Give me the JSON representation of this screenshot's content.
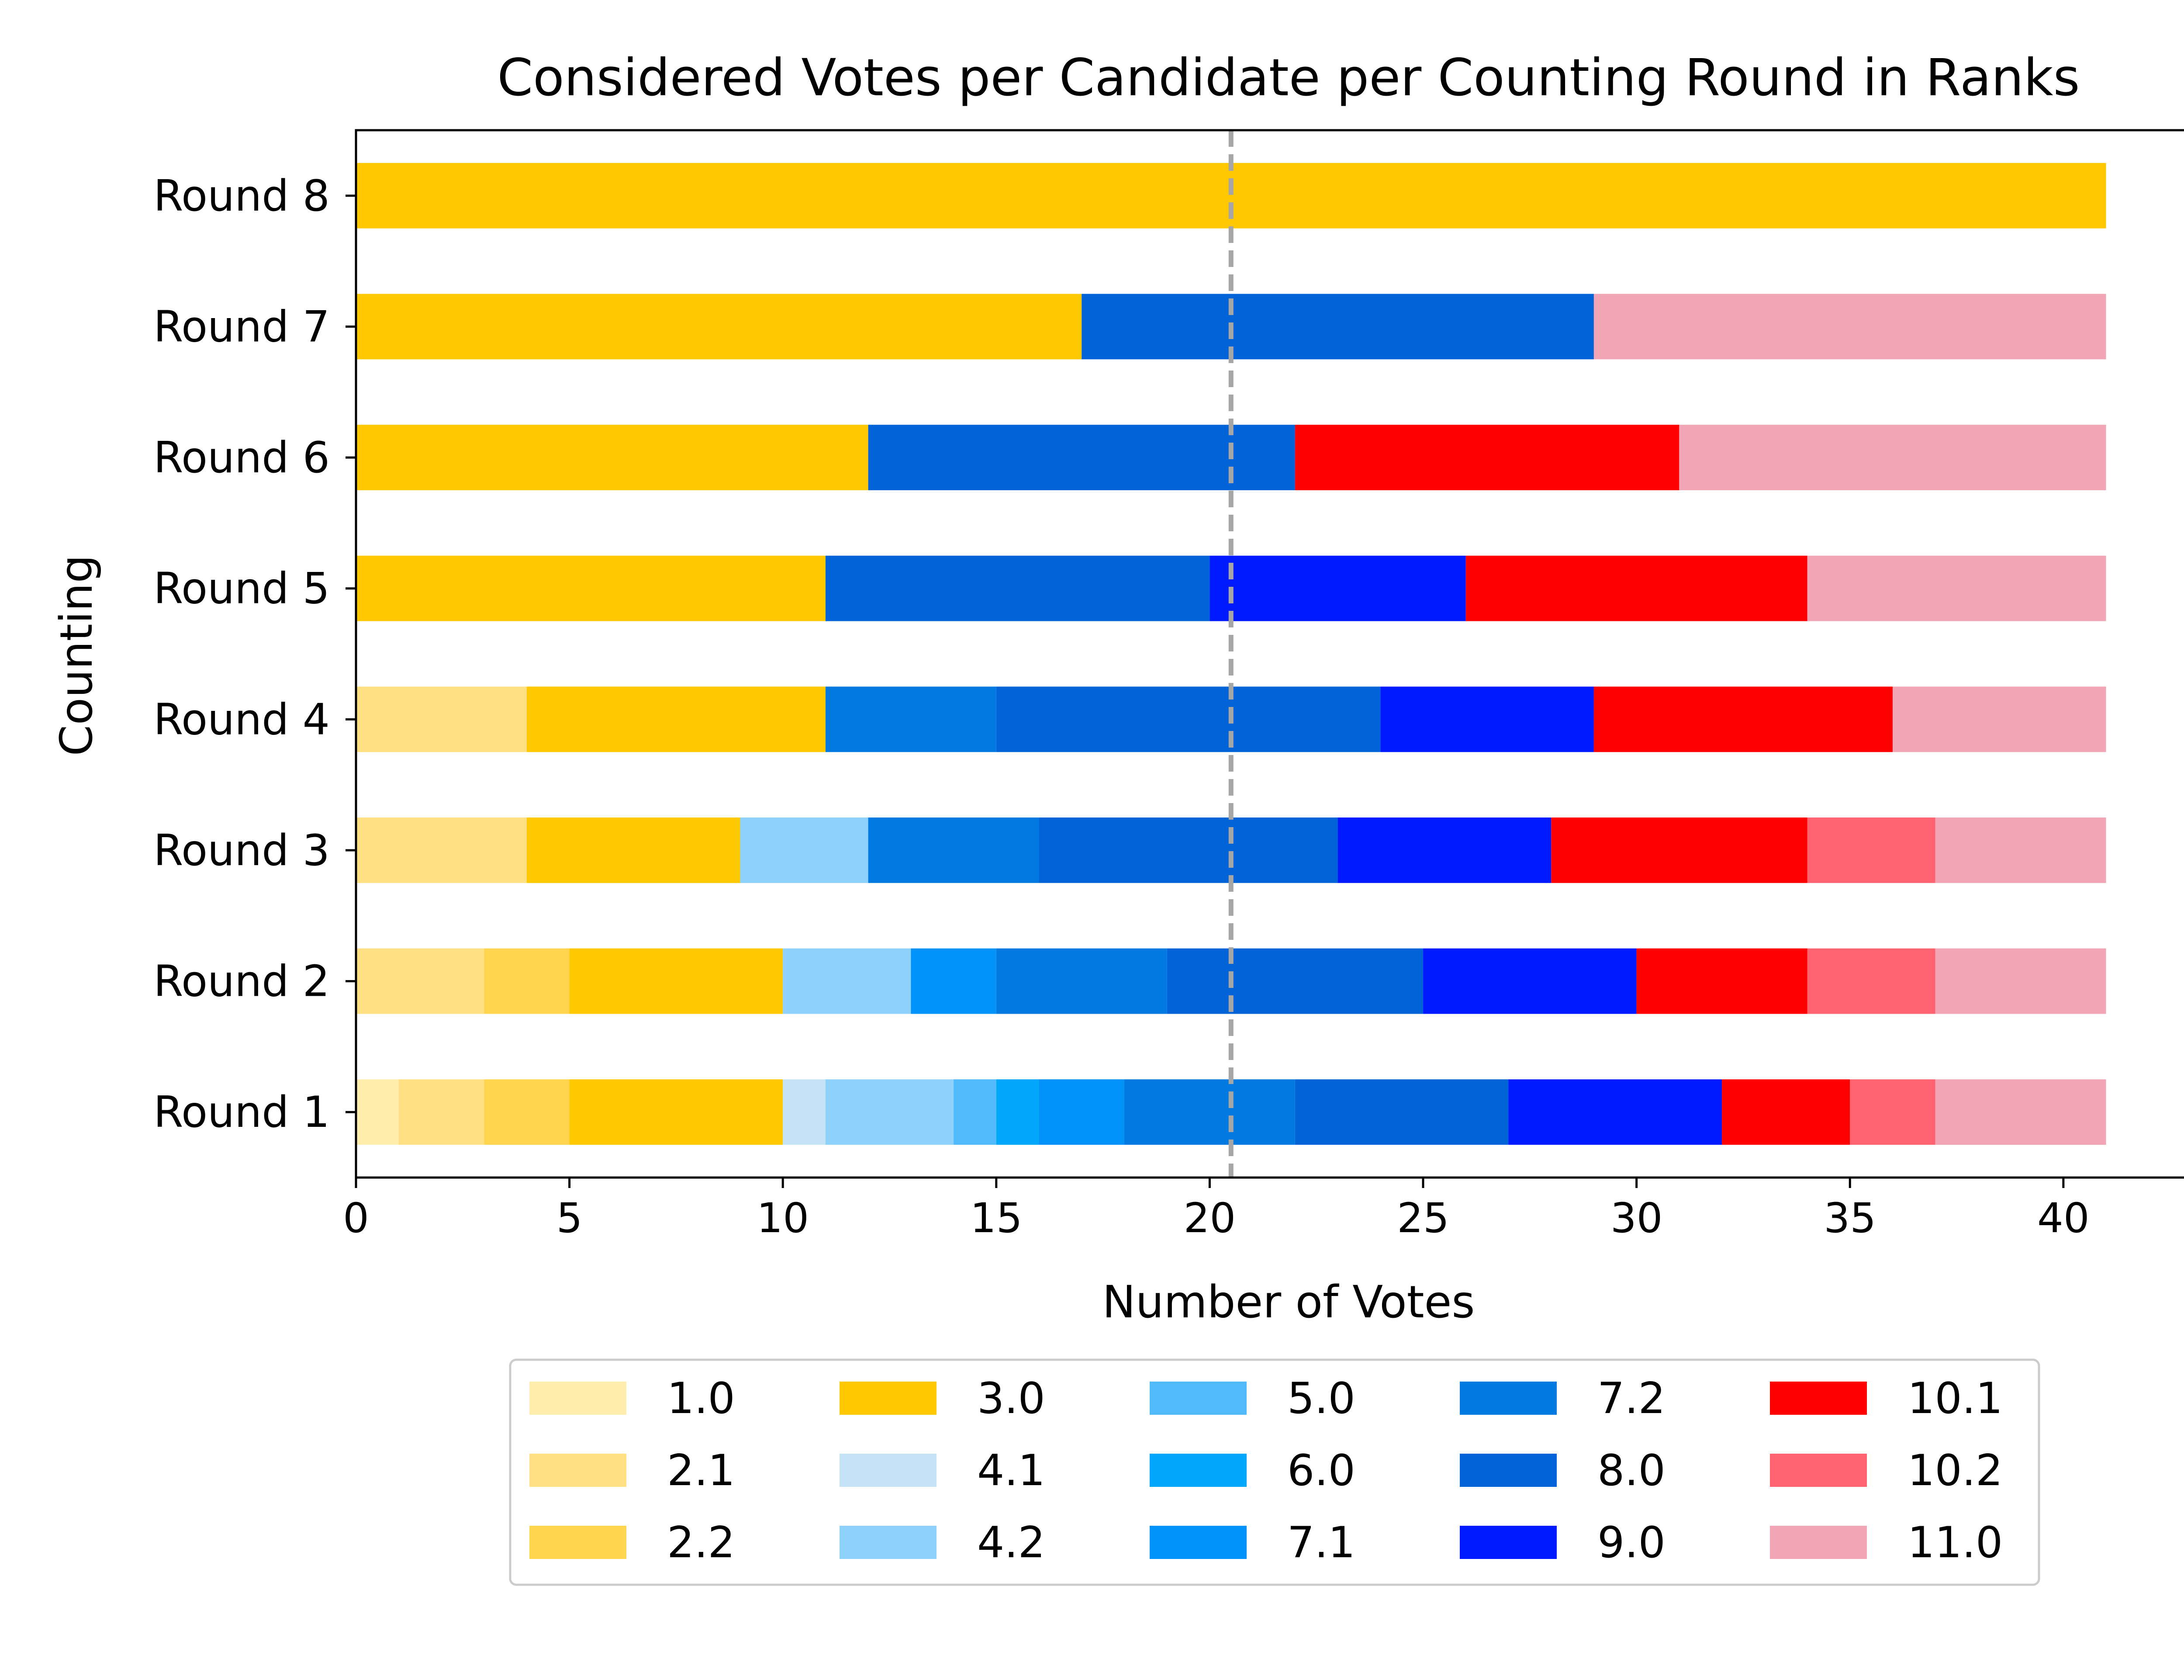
{
  "chart_data": {
    "type": "bar",
    "orientation": "horizontal",
    "stacked": true,
    "title": "Considered Votes per Candidate per Counting Round in Ranks",
    "xlabel": "Number of Votes",
    "ylabel": "Counting",
    "xlim": [
      0,
      43
    ],
    "x_ticks": [
      0,
      5,
      10,
      15,
      20,
      25,
      30,
      35,
      40
    ],
    "categories": [
      "Round 1",
      "Round 2",
      "Round 3",
      "Round 4",
      "Round 5",
      "Round 6",
      "Round 7",
      "Round 8"
    ],
    "reference_line": {
      "x": 20.5,
      "style": "dashed",
      "color": "#a6a6a6"
    },
    "legend_position": "bottom-center",
    "legend_columns": 5,
    "series": [
      {
        "name": "1.0",
        "color": "#ffedad",
        "values": [
          1,
          0,
          0,
          0,
          0,
          0,
          0,
          0
        ]
      },
      {
        "name": "2.1",
        "color": "#ffe083",
        "values": [
          2,
          3,
          4,
          4,
          0,
          0,
          0,
          0
        ]
      },
      {
        "name": "2.2",
        "color": "#ffd54f",
        "values": [
          2,
          2,
          0,
          0,
          0,
          0,
          0,
          0
        ]
      },
      {
        "name": "3.0",
        "color": "#ffc800",
        "values": [
          5,
          5,
          5,
          7,
          11,
          12,
          17,
          41
        ]
      },
      {
        "name": "4.1",
        "color": "#c4e4f5",
        "values": [
          1,
          0,
          0,
          0,
          0,
          0,
          0,
          0
        ]
      },
      {
        "name": "4.2",
        "color": "#8ed1fa",
        "values": [
          3,
          3,
          3,
          0,
          0,
          0,
          0,
          0
        ]
      },
      {
        "name": "5.0",
        "color": "#50bafa",
        "values": [
          1,
          0,
          0,
          0,
          0,
          0,
          0,
          0
        ]
      },
      {
        "name": "6.0",
        "color": "#00a7fb",
        "values": [
          1,
          0,
          0,
          0,
          0,
          0,
          0,
          0
        ]
      },
      {
        "name": "7.1",
        "color": "#0091f9",
        "values": [
          2,
          2,
          0,
          0,
          0,
          0,
          0,
          0
        ]
      },
      {
        "name": "7.2",
        "color": "#007ae0",
        "values": [
          4,
          4,
          4,
          4,
          0,
          0,
          0,
          0
        ]
      },
      {
        "name": "8.0",
        "color": "#0064d8",
        "values": [
          5,
          6,
          7,
          9,
          9,
          10,
          12,
          0
        ]
      },
      {
        "name": "9.0",
        "color": "#001aff",
        "values": [
          5,
          5,
          5,
          5,
          6,
          0,
          0,
          0
        ]
      },
      {
        "name": "10.1",
        "color": "#ff0000",
        "values": [
          3,
          4,
          6,
          7,
          8,
          9,
          0,
          0
        ]
      },
      {
        "name": "10.2",
        "color": "#ff6370",
        "values": [
          2,
          3,
          3,
          0,
          0,
          0,
          0,
          0
        ]
      },
      {
        "name": "11.0",
        "color": "#f2a6b5",
        "values": [
          4,
          4,
          4,
          5,
          7,
          10,
          12,
          0
        ]
      }
    ]
  }
}
